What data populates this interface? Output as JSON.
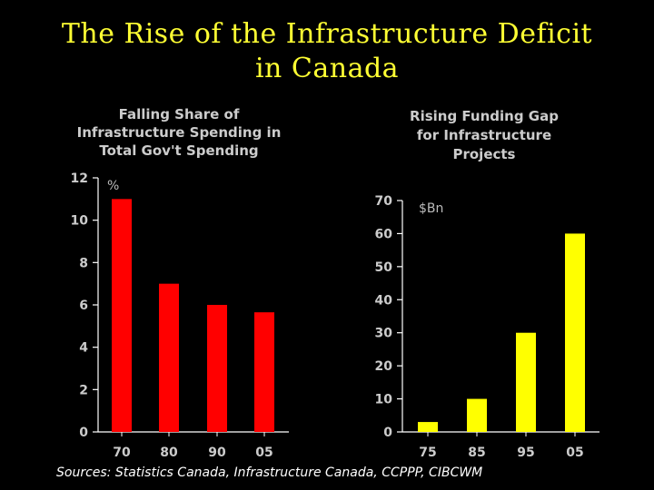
{
  "slide": {
    "title_line_1": "The Rise of the Infrastructure Deficit",
    "title_line_2": "in Canada",
    "sources": "Sources: Statistics Canada, Infrastructure Canada, CCPPP, CIBCWM"
  },
  "colors": {
    "background": "#000000",
    "title": "#FFFF33",
    "left_bars": "#FF0000",
    "right_bars": "#FFFF00",
    "axis": "#FFFFFF",
    "label_text": "#CCCCCC"
  },
  "chart_data": [
    {
      "type": "bar",
      "title_lines": [
        "Falling Share of",
        "Infrastructure Spending in",
        "Total Gov't Spending"
      ],
      "unit": "%",
      "categories": [
        "70",
        "80",
        "90",
        "05"
      ],
      "values": [
        11,
        7,
        6,
        5.65
      ],
      "ylim": [
        0,
        12
      ],
      "yticks": [
        "0",
        "2",
        "4",
        "6",
        "8",
        "10",
        "12"
      ],
      "xlabel": "",
      "ylabel": "%",
      "color": "#FF0000"
    },
    {
      "type": "bar",
      "title_lines": [
        "Rising Funding Gap",
        "for Infrastructure",
        "Projects"
      ],
      "unit": "$Bn",
      "categories": [
        "75",
        "85",
        "95",
        "05"
      ],
      "values": [
        3,
        10,
        30,
        60
      ],
      "ylim": [
        0,
        70
      ],
      "yticks": [
        "0",
        "10",
        "20",
        "30",
        "40",
        "50",
        "60",
        "70"
      ],
      "xlabel": "",
      "ylabel": "$Bn",
      "color": "#FFFF00"
    }
  ]
}
